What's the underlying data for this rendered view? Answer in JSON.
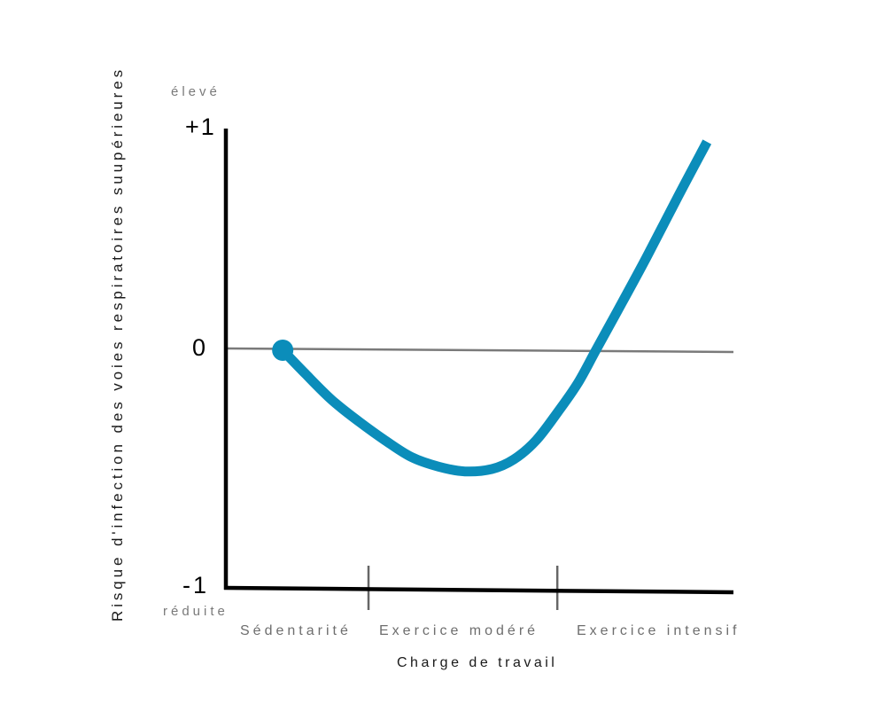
{
  "chart_data": {
    "type": "line",
    "xlabel": "Charge de travail",
    "ylabel": "Risque d'infection des voies respiratoires suupérieures",
    "ylim": [
      -1,
      1
    ],
    "yticks": [
      {
        "value": 1,
        "label": "+1"
      },
      {
        "value": 0,
        "label": "0"
      },
      {
        "value": -1,
        "label": "-1"
      }
    ],
    "y_extremes": {
      "high": "élevé",
      "low": "réduite"
    },
    "xlim": [
      0,
      100
    ],
    "categories": [
      "Sédentarité",
      "Exercice modéré",
      "Exercice intensif"
    ],
    "category_boundaries": [
      28.1,
      65.3
    ],
    "reference_line_y": 0,
    "grid": false,
    "series": [
      {
        "color": "#0b8dba",
        "start_marker": true,
        "x": [
          11.2,
          15.7,
          20.9,
          26.2,
          31.4,
          36.6,
          41.9,
          47.1,
          52.4,
          56.7,
          61.1,
          65.4,
          69.3,
          72.9,
          77.7,
          82.9,
          89.0,
          94.8
        ],
        "y": [
          0,
          -0.1,
          -0.21,
          -0.3,
          -0.38,
          -0.45,
          -0.49,
          -0.51,
          -0.5,
          -0.46,
          -0.38,
          -0.26,
          -0.14,
          0,
          0.2,
          0.42,
          0.69,
          0.94
        ]
      }
    ]
  },
  "colors": {
    "axes": "#000000",
    "reference_line": "#7a7a7a",
    "boundary_ticks": "#666666",
    "category_text": "#6e6e6e"
  }
}
